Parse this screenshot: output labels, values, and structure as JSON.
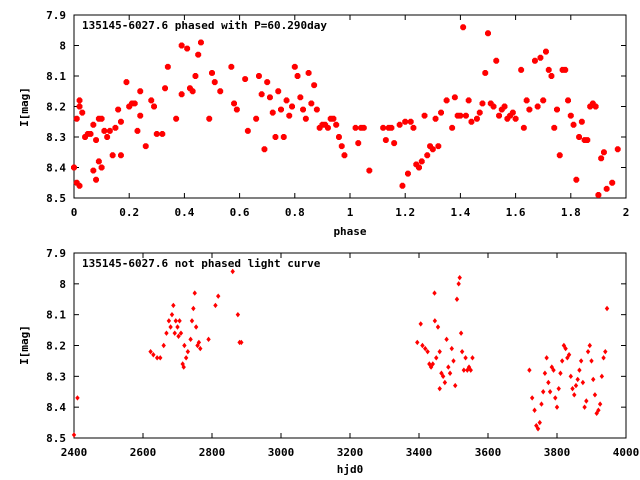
{
  "chart_data": [
    {
      "type": "scatter",
      "title": "135145-6027.6 phased with P=60.290day",
      "xlabel": "phase",
      "ylabel": "I[mag]",
      "xlim": [
        0,
        2
      ],
      "ylim": [
        8.5,
        7.9
      ],
      "y_inverted": true,
      "xticks": [
        "0",
        "0.2",
        "0.4",
        "0.6",
        "0.8",
        "1",
        "1.2",
        "1.4",
        "1.6",
        "1.8",
        "2"
      ],
      "xtick_values": [
        0,
        0.2,
        0.4,
        0.6,
        0.8,
        1.0,
        1.2,
        1.4,
        1.6,
        1.8,
        2.0
      ],
      "yticks": [
        "7.9",
        "8",
        "8.1",
        "8.2",
        "8.3",
        "8.4",
        "8.5"
      ],
      "ytick_values": [
        7.9,
        8.0,
        8.1,
        8.2,
        8.3,
        8.4,
        8.5
      ],
      "grid": false,
      "marker_color": "#ff0000",
      "marker": "star",
      "points": [
        [
          0.0,
          8.4
        ],
        [
          0.01,
          8.45
        ],
        [
          0.02,
          8.46
        ],
        [
          0.01,
          8.24
        ],
        [
          0.02,
          8.2
        ],
        [
          0.02,
          8.18
        ],
        [
          0.03,
          8.22
        ],
        [
          0.04,
          8.3
        ],
        [
          0.05,
          8.29
        ],
        [
          0.06,
          8.29
        ],
        [
          0.07,
          8.26
        ],
        [
          0.07,
          8.41
        ],
        [
          0.08,
          8.31
        ],
        [
          0.08,
          8.44
        ],
        [
          0.09,
          8.38
        ],
        [
          0.09,
          8.24
        ],
        [
          0.1,
          8.4
        ],
        [
          0.1,
          8.24
        ],
        [
          0.11,
          8.28
        ],
        [
          0.12,
          8.3
        ],
        [
          0.13,
          8.28
        ],
        [
          0.14,
          8.36
        ],
        [
          0.15,
          8.27
        ],
        [
          0.16,
          8.21
        ],
        [
          0.17,
          8.36
        ],
        [
          0.17,
          8.25
        ],
        [
          0.19,
          8.12
        ],
        [
          0.2,
          8.2
        ],
        [
          0.21,
          8.19
        ],
        [
          0.22,
          8.19
        ],
        [
          0.23,
          8.28
        ],
        [
          0.24,
          8.23
        ],
        [
          0.24,
          8.15
        ],
        [
          0.26,
          8.33
        ],
        [
          0.28,
          8.18
        ],
        [
          0.29,
          8.2
        ],
        [
          0.3,
          8.29
        ],
        [
          0.32,
          8.29
        ],
        [
          0.33,
          8.14
        ],
        [
          0.34,
          8.07
        ],
        [
          0.37,
          8.24
        ],
        [
          0.39,
          8.16
        ],
        [
          0.39,
          8.0
        ],
        [
          0.41,
          8.01
        ],
        [
          0.42,
          8.14
        ],
        [
          0.43,
          8.15
        ],
        [
          0.44,
          8.1
        ],
        [
          0.45,
          8.03
        ],
        [
          0.46,
          7.99
        ],
        [
          0.49,
          8.24
        ],
        [
          0.5,
          8.09
        ],
        [
          0.51,
          8.12
        ],
        [
          0.53,
          8.15
        ],
        [
          0.57,
          8.07
        ],
        [
          0.58,
          8.19
        ],
        [
          0.59,
          8.21
        ],
        [
          0.62,
          8.11
        ],
        [
          0.63,
          8.28
        ],
        [
          0.66,
          8.24
        ],
        [
          0.67,
          8.1
        ],
        [
          0.68,
          8.16
        ],
        [
          0.69,
          8.34
        ],
        [
          0.7,
          8.12
        ],
        [
          0.71,
          8.17
        ],
        [
          0.72,
          8.22
        ],
        [
          0.73,
          8.3
        ],
        [
          0.74,
          8.15
        ],
        [
          0.75,
          8.21
        ],
        [
          0.76,
          8.3
        ],
        [
          0.77,
          8.18
        ],
        [
          0.78,
          8.23
        ],
        [
          0.79,
          8.2
        ],
        [
          0.8,
          8.07
        ],
        [
          0.81,
          8.1
        ],
        [
          0.82,
          8.17
        ],
        [
          0.83,
          8.21
        ],
        [
          0.84,
          8.24
        ],
        [
          0.85,
          8.09
        ],
        [
          0.86,
          8.19
        ],
        [
          0.87,
          8.13
        ],
        [
          0.88,
          8.21
        ],
        [
          0.89,
          8.27
        ],
        [
          0.9,
          8.26
        ],
        [
          0.91,
          8.26
        ],
        [
          0.92,
          8.27
        ],
        [
          0.93,
          8.24
        ],
        [
          0.94,
          8.24
        ],
        [
          0.95,
          8.26
        ],
        [
          0.96,
          8.3
        ],
        [
          0.97,
          8.33
        ],
        [
          0.98,
          8.36
        ],
        [
          1.02,
          8.27
        ],
        [
          1.03,
          8.32
        ],
        [
          1.04,
          8.27
        ],
        [
          1.05,
          8.27
        ],
        [
          1.07,
          8.41
        ],
        [
          1.12,
          8.27
        ],
        [
          1.13,
          8.31
        ],
        [
          1.14,
          8.27
        ],
        [
          1.15,
          8.27
        ],
        [
          1.16,
          8.32
        ],
        [
          1.18,
          8.26
        ],
        [
          1.19,
          8.46
        ],
        [
          1.2,
          8.25
        ],
        [
          1.21,
          8.42
        ],
        [
          1.22,
          8.25
        ],
        [
          1.23,
          8.27
        ],
        [
          1.24,
          8.39
        ],
        [
          1.25,
          8.4
        ],
        [
          1.26,
          8.38
        ],
        [
          1.27,
          8.23
        ],
        [
          1.28,
          8.36
        ],
        [
          1.29,
          8.33
        ],
        [
          1.3,
          8.34
        ],
        [
          1.31,
          8.24
        ],
        [
          1.32,
          8.33
        ],
        [
          1.33,
          8.22
        ],
        [
          1.35,
          8.18
        ],
        [
          1.37,
          8.27
        ],
        [
          1.38,
          8.17
        ],
        [
          1.39,
          8.23
        ],
        [
          1.4,
          8.23
        ],
        [
          1.41,
          7.94
        ],
        [
          1.42,
          8.23
        ],
        [
          1.43,
          8.18
        ],
        [
          1.44,
          8.25
        ],
        [
          1.46,
          8.24
        ],
        [
          1.47,
          8.22
        ],
        [
          1.48,
          8.19
        ],
        [
          1.49,
          8.09
        ],
        [
          1.5,
          7.96
        ],
        [
          1.51,
          8.19
        ],
        [
          1.52,
          8.2
        ],
        [
          1.53,
          8.05
        ],
        [
          1.54,
          8.23
        ],
        [
          1.55,
          8.21
        ],
        [
          1.56,
          8.2
        ],
        [
          1.57,
          8.24
        ],
        [
          1.58,
          8.23
        ],
        [
          1.59,
          8.22
        ],
        [
          1.6,
          8.24
        ],
        [
          1.62,
          8.08
        ],
        [
          1.63,
          8.27
        ],
        [
          1.64,
          8.18
        ],
        [
          1.65,
          8.21
        ],
        [
          1.67,
          8.05
        ],
        [
          1.68,
          8.2
        ],
        [
          1.69,
          8.04
        ],
        [
          1.7,
          8.18
        ],
        [
          1.71,
          8.02
        ],
        [
          1.72,
          8.08
        ],
        [
          1.73,
          8.1
        ],
        [
          1.74,
          8.27
        ],
        [
          1.75,
          8.21
        ],
        [
          1.76,
          8.36
        ],
        [
          1.77,
          8.08
        ],
        [
          1.78,
          8.08
        ],
        [
          1.79,
          8.18
        ],
        [
          1.8,
          8.23
        ],
        [
          1.81,
          8.26
        ],
        [
          1.82,
          8.44
        ],
        [
          1.83,
          8.3
        ],
        [
          1.84,
          8.25
        ],
        [
          1.85,
          8.31
        ],
        [
          1.86,
          8.31
        ],
        [
          1.87,
          8.2
        ],
        [
          1.88,
          8.19
        ],
        [
          1.89,
          8.2
        ],
        [
          1.9,
          8.49
        ],
        [
          1.91,
          8.37
        ],
        [
          1.92,
          8.35
        ],
        [
          1.93,
          8.47
        ],
        [
          1.95,
          8.45
        ],
        [
          1.97,
          8.34
        ]
      ]
    },
    {
      "type": "scatter",
      "title": "135145-6027.6 not phased light curve",
      "xlabel": "hjd0",
      "ylabel": "I[mag]",
      "xlim": [
        2400,
        4000
      ],
      "ylim": [
        8.5,
        7.9
      ],
      "y_inverted": true,
      "xticks": [
        "2400",
        "2600",
        "2800",
        "3000",
        "3200",
        "3400",
        "3600",
        "3800",
        "4000"
      ],
      "xtick_values": [
        2400,
        2600,
        2800,
        3000,
        3200,
        3400,
        3600,
        3800,
        4000
      ],
      "yticks": [
        "7.9",
        "8",
        "8.1",
        "8.2",
        "8.3",
        "8.4",
        "8.5"
      ],
      "ytick_values": [
        7.9,
        8.0,
        8.1,
        8.2,
        8.3,
        8.4,
        8.5
      ],
      "grid": false,
      "marker_color": "#ff0000",
      "marker": "diamond",
      "points": [
        [
          2400,
          8.49
        ],
        [
          2410,
          8.37
        ],
        [
          2622,
          8.22
        ],
        [
          2630,
          8.23
        ],
        [
          2641,
          8.24
        ],
        [
          2650,
          8.24
        ],
        [
          2660,
          8.2
        ],
        [
          2668,
          8.16
        ],
        [
          2675,
          8.12
        ],
        [
          2680,
          8.14
        ],
        [
          2684,
          8.1
        ],
        [
          2688,
          8.07
        ],
        [
          2692,
          8.16
        ],
        [
          2695,
          8.12
        ],
        [
          2700,
          8.14
        ],
        [
          2703,
          8.17
        ],
        [
          2706,
          8.12
        ],
        [
          2710,
          8.16
        ],
        [
          2715,
          8.26
        ],
        [
          2718,
          8.27
        ],
        [
          2720,
          8.2
        ],
        [
          2725,
          8.24
        ],
        [
          2730,
          8.22
        ],
        [
          2738,
          8.18
        ],
        [
          2742,
          8.12
        ],
        [
          2746,
          8.08
        ],
        [
          2750,
          8.03
        ],
        [
          2754,
          8.14
        ],
        [
          2758,
          8.2
        ],
        [
          2762,
          8.19
        ],
        [
          2766,
          8.21
        ],
        [
          2790,
          8.18
        ],
        [
          2810,
          8.07
        ],
        [
          2818,
          8.04
        ],
        [
          2860,
          7.96
        ],
        [
          2875,
          8.1
        ],
        [
          2880,
          8.19
        ],
        [
          2885,
          8.19
        ],
        [
          3395,
          8.19
        ],
        [
          3405,
          8.13
        ],
        [
          3410,
          8.2
        ],
        [
          3418,
          8.21
        ],
        [
          3425,
          8.22
        ],
        [
          3430,
          8.26
        ],
        [
          3435,
          8.27
        ],
        [
          3440,
          8.26
        ],
        [
          3446,
          8.12
        ],
        [
          3450,
          8.24
        ],
        [
          3455,
          8.14
        ],
        [
          3460,
          8.22
        ],
        [
          3465,
          8.29
        ],
        [
          3470,
          8.3
        ],
        [
          3475,
          8.32
        ],
        [
          3480,
          8.18
        ],
        [
          3485,
          8.27
        ],
        [
          3490,
          8.29
        ],
        [
          3495,
          8.21
        ],
        [
          3500,
          8.25
        ],
        [
          3505,
          8.33
        ],
        [
          3510,
          8.05
        ],
        [
          3515,
          8.0
        ],
        [
          3518,
          7.98
        ],
        [
          3522,
          8.16
        ],
        [
          3525,
          8.22
        ],
        [
          3530,
          8.28
        ],
        [
          3535,
          8.24
        ],
        [
          3540,
          8.28
        ],
        [
          3545,
          8.27
        ],
        [
          3550,
          8.28
        ],
        [
          3555,
          8.24
        ],
        [
          3445,
          8.03
        ],
        [
          3460,
          8.34
        ],
        [
          3720,
          8.28
        ],
        [
          3728,
          8.37
        ],
        [
          3735,
          8.41
        ],
        [
          3740,
          8.46
        ],
        [
          3745,
          8.47
        ],
        [
          3750,
          8.45
        ],
        [
          3755,
          8.39
        ],
        [
          3760,
          8.35
        ],
        [
          3765,
          8.29
        ],
        [
          3770,
          8.24
        ],
        [
          3775,
          8.32
        ],
        [
          3780,
          8.35
        ],
        [
          3785,
          8.27
        ],
        [
          3790,
          8.28
        ],
        [
          3795,
          8.37
        ],
        [
          3800,
          8.4
        ],
        [
          3805,
          8.34
        ],
        [
          3810,
          8.29
        ],
        [
          3815,
          8.25
        ],
        [
          3820,
          8.2
        ],
        [
          3825,
          8.21
        ],
        [
          3830,
          8.24
        ],
        [
          3835,
          8.23
        ],
        [
          3840,
          8.3
        ],
        [
          3845,
          8.34
        ],
        [
          3850,
          8.36
        ],
        [
          3855,
          8.33
        ],
        [
          3860,
          8.31
        ],
        [
          3865,
          8.28
        ],
        [
          3870,
          8.25
        ],
        [
          3875,
          8.32
        ],
        [
          3880,
          8.4
        ],
        [
          3885,
          8.38
        ],
        [
          3890,
          8.22
        ],
        [
          3895,
          8.2
        ],
        [
          3900,
          8.25
        ],
        [
          3905,
          8.31
        ],
        [
          3910,
          8.36
        ],
        [
          3915,
          8.42
        ],
        [
          3920,
          8.41
        ],
        [
          3925,
          8.39
        ],
        [
          3930,
          8.3
        ],
        [
          3935,
          8.24
        ],
        [
          3940,
          8.22
        ],
        [
          3945,
          8.08
        ]
      ]
    }
  ]
}
